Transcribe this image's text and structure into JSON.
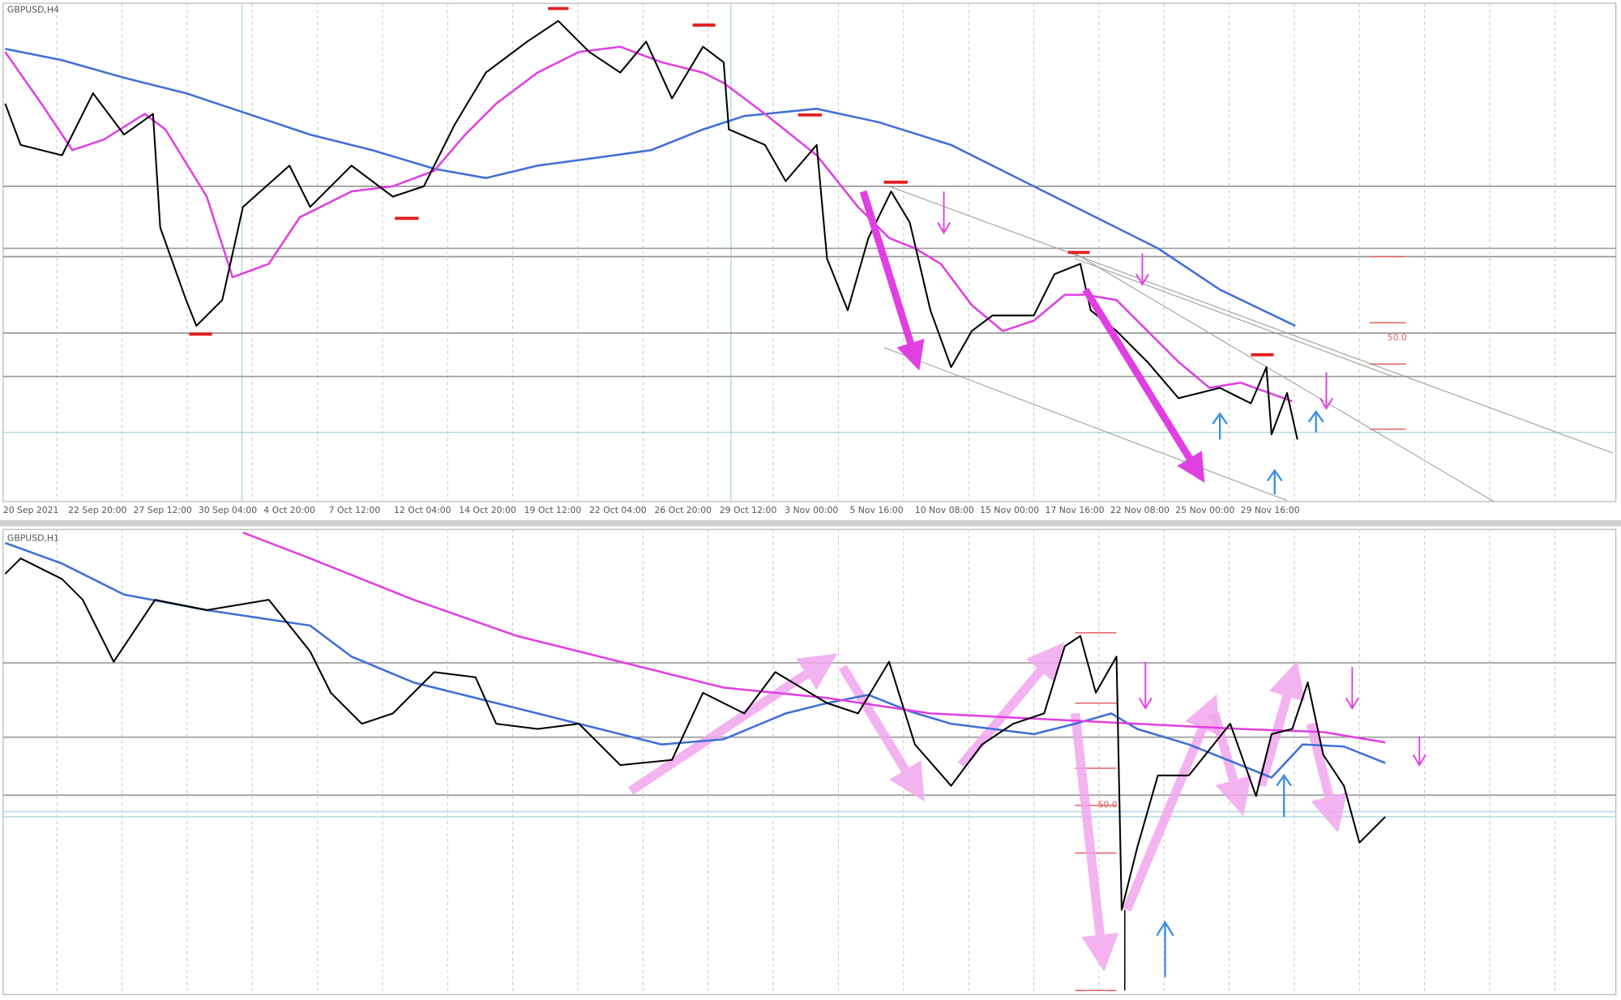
{
  "panels": [
    {
      "label": "GBPUSD,H4",
      "time_labels": [
        "20 Sep 2021",
        "22 Sep 20:00",
        "27 Sep 12:00",
        "30 Sep 04:00",
        "4 Oct 20:00",
        "7 Oct 12:00",
        "12 Oct 04:00",
        "14 Oct 20:00",
        "19 Oct 12:00",
        "22 Oct 04:00",
        "26 Oct 20:00",
        "29 Oct 12:00",
        "3 Nov 00:00",
        "5 Nov 16:00",
        "10 Nov 08:00",
        "15 Nov 00:00",
        "17 Nov 16:00",
        "22 Nov 08:00",
        "25 Nov 00:00",
        "29 Nov 16:00"
      ],
      "fib_label": "50.0"
    },
    {
      "label": "GBPUSD,H1",
      "fib_label": "50.0"
    }
  ]
}
